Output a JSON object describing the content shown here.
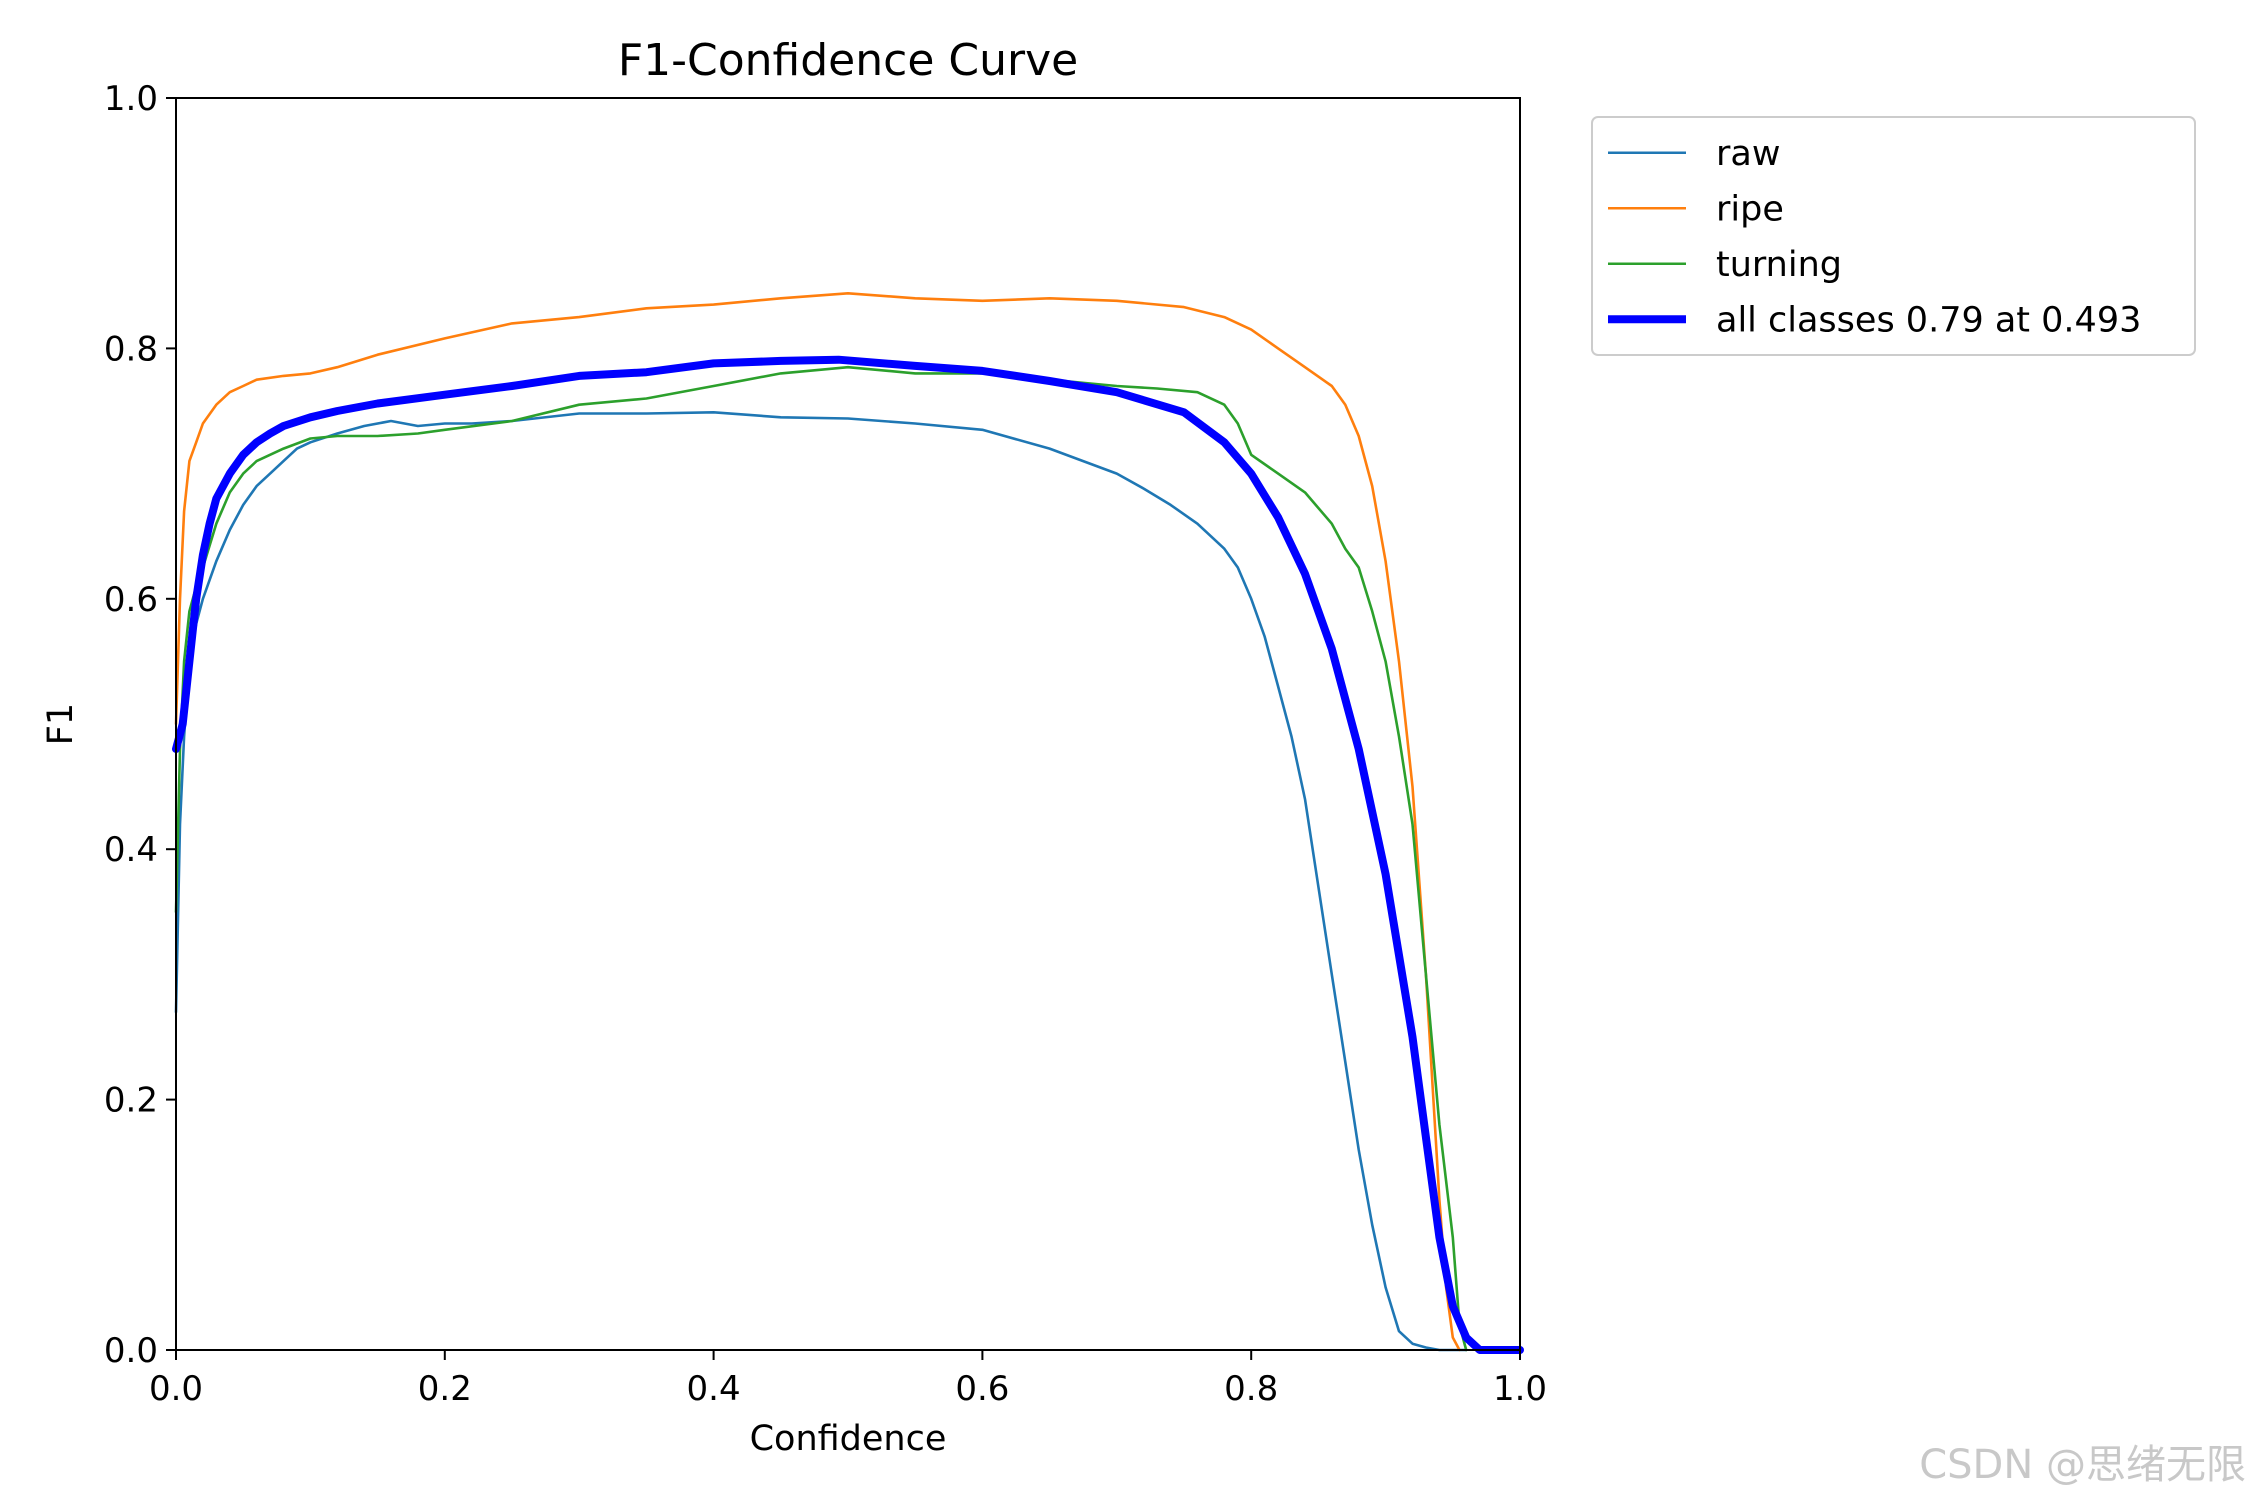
{
  "chart_data": {
    "type": "line",
    "title": "F1-Confidence Curve",
    "xlabel": "Confidence",
    "ylabel": "F1",
    "xlim": [
      0,
      1
    ],
    "ylim": [
      0,
      1
    ],
    "xticks": [
      0,
      0.2,
      0.4,
      0.6,
      0.8,
      1.0
    ],
    "yticks": [
      0,
      0.2,
      0.4,
      0.6,
      0.8,
      1.0
    ],
    "xtick_labels": [
      "0.0",
      "0.2",
      "0.4",
      "0.6",
      "0.8",
      "1.0"
    ],
    "ytick_labels": [
      "0.0",
      "0.2",
      "0.4",
      "0.6",
      "0.8",
      "1.0"
    ],
    "grid": false,
    "legend_position": "outside-top-right",
    "series": [
      {
        "name": "raw",
        "color": "#1f77b4",
        "thick": false,
        "x": [
          0.0,
          0.003,
          0.006,
          0.01,
          0.015,
          0.02,
          0.03,
          0.04,
          0.05,
          0.06,
          0.07,
          0.08,
          0.09,
          0.1,
          0.12,
          0.14,
          0.16,
          0.18,
          0.2,
          0.22,
          0.25,
          0.3,
          0.35,
          0.4,
          0.45,
          0.5,
          0.55,
          0.6,
          0.65,
          0.7,
          0.72,
          0.74,
          0.76,
          0.78,
          0.79,
          0.8,
          0.81,
          0.82,
          0.83,
          0.84,
          0.85,
          0.86,
          0.87,
          0.88,
          0.89,
          0.9,
          0.91,
          0.92,
          0.93,
          0.94,
          0.95,
          0.96
        ],
        "y": [
          0.27,
          0.42,
          0.49,
          0.55,
          0.58,
          0.6,
          0.63,
          0.655,
          0.675,
          0.69,
          0.7,
          0.71,
          0.72,
          0.725,
          0.732,
          0.738,
          0.742,
          0.738,
          0.74,
          0.74,
          0.742,
          0.748,
          0.748,
          0.749,
          0.745,
          0.744,
          0.74,
          0.735,
          0.72,
          0.7,
          0.688,
          0.675,
          0.66,
          0.64,
          0.625,
          0.6,
          0.57,
          0.53,
          0.49,
          0.44,
          0.37,
          0.3,
          0.23,
          0.16,
          0.1,
          0.05,
          0.015,
          0.005,
          0.002,
          0.0,
          0.0,
          0.0
        ]
      },
      {
        "name": "ripe",
        "color": "#ff7f0e",
        "thick": false,
        "x": [
          0.0,
          0.003,
          0.006,
          0.01,
          0.015,
          0.02,
          0.03,
          0.04,
          0.05,
          0.06,
          0.08,
          0.1,
          0.12,
          0.15,
          0.2,
          0.25,
          0.3,
          0.35,
          0.4,
          0.45,
          0.5,
          0.55,
          0.6,
          0.65,
          0.7,
          0.75,
          0.78,
          0.8,
          0.82,
          0.84,
          0.86,
          0.87,
          0.88,
          0.89,
          0.9,
          0.91,
          0.92,
          0.93,
          0.94,
          0.945,
          0.95,
          0.955
        ],
        "y": [
          0.5,
          0.6,
          0.67,
          0.71,
          0.725,
          0.74,
          0.755,
          0.765,
          0.77,
          0.775,
          0.778,
          0.78,
          0.785,
          0.795,
          0.808,
          0.82,
          0.825,
          0.832,
          0.835,
          0.84,
          0.844,
          0.84,
          0.838,
          0.84,
          0.838,
          0.833,
          0.825,
          0.815,
          0.8,
          0.785,
          0.77,
          0.755,
          0.73,
          0.69,
          0.63,
          0.55,
          0.45,
          0.3,
          0.12,
          0.05,
          0.01,
          0.0
        ]
      },
      {
        "name": "turning",
        "color": "#2ca02c",
        "thick": false,
        "x": [
          0.0,
          0.003,
          0.006,
          0.01,
          0.015,
          0.02,
          0.03,
          0.04,
          0.05,
          0.06,
          0.08,
          0.1,
          0.12,
          0.15,
          0.18,
          0.2,
          0.25,
          0.3,
          0.35,
          0.4,
          0.45,
          0.5,
          0.55,
          0.6,
          0.65,
          0.7,
          0.73,
          0.76,
          0.78,
          0.79,
          0.8,
          0.82,
          0.84,
          0.86,
          0.87,
          0.88,
          0.89,
          0.9,
          0.91,
          0.92,
          0.93,
          0.94,
          0.95,
          0.955,
          0.96
        ],
        "y": [
          0.35,
          0.48,
          0.55,
          0.59,
          0.61,
          0.625,
          0.66,
          0.685,
          0.7,
          0.71,
          0.72,
          0.728,
          0.73,
          0.73,
          0.732,
          0.735,
          0.742,
          0.755,
          0.76,
          0.77,
          0.78,
          0.785,
          0.78,
          0.78,
          0.775,
          0.77,
          0.768,
          0.765,
          0.755,
          0.74,
          0.715,
          0.7,
          0.685,
          0.66,
          0.64,
          0.625,
          0.59,
          0.55,
          0.49,
          0.42,
          0.3,
          0.18,
          0.09,
          0.02,
          0.0
        ]
      },
      {
        "name": "all classes 0.79 at 0.493",
        "color": "#0000ff",
        "thick": true,
        "x": [
          0.0,
          0.005,
          0.01,
          0.015,
          0.02,
          0.025,
          0.03,
          0.04,
          0.05,
          0.06,
          0.07,
          0.08,
          0.1,
          0.12,
          0.15,
          0.2,
          0.25,
          0.3,
          0.35,
          0.4,
          0.45,
          0.493,
          0.55,
          0.6,
          0.65,
          0.7,
          0.75,
          0.78,
          0.8,
          0.82,
          0.84,
          0.86,
          0.88,
          0.9,
          0.92,
          0.93,
          0.94,
          0.95,
          0.96,
          0.97,
          0.98,
          1.0
        ],
        "y": [
          0.48,
          0.5,
          0.55,
          0.6,
          0.635,
          0.66,
          0.68,
          0.7,
          0.715,
          0.725,
          0.732,
          0.738,
          0.745,
          0.75,
          0.756,
          0.763,
          0.77,
          0.778,
          0.781,
          0.788,
          0.79,
          0.791,
          0.786,
          0.782,
          0.774,
          0.765,
          0.749,
          0.725,
          0.7,
          0.665,
          0.62,
          0.56,
          0.48,
          0.38,
          0.25,
          0.17,
          0.09,
          0.035,
          0.01,
          0.0,
          0.0,
          0.0
        ]
      }
    ]
  },
  "watermark": "CSDN @思绪无限"
}
